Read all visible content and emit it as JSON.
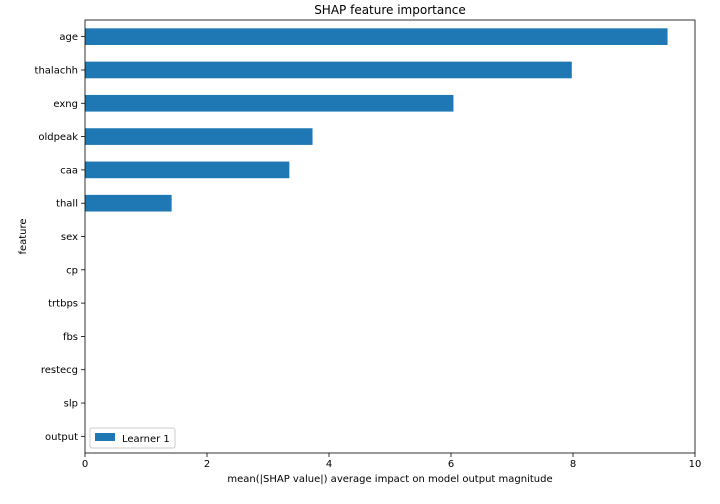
{
  "chart_data": {
    "type": "bar",
    "orientation": "horizontal",
    "title": "SHAP feature importance",
    "xlabel": "mean(|SHAP value|) average impact on model output magnitude",
    "ylabel": "feature",
    "categories": [
      "age",
      "thalachh",
      "exng",
      "oldpeak",
      "caa",
      "thall",
      "sex",
      "cp",
      "trtbps",
      "fbs",
      "restecg",
      "slp",
      "output"
    ],
    "series": [
      {
        "name": "Learner 1",
        "values": [
          9.55,
          7.98,
          6.04,
          3.73,
          3.35,
          1.42,
          0,
          0,
          0,
          0,
          0,
          0,
          0
        ]
      }
    ],
    "xlim": [
      0,
      10
    ],
    "xticks": [
      "0",
      "2",
      "4",
      "6",
      "8",
      "10"
    ],
    "grid": false,
    "legend_position": "lower-left",
    "bar_color": "#1f77b4"
  }
}
